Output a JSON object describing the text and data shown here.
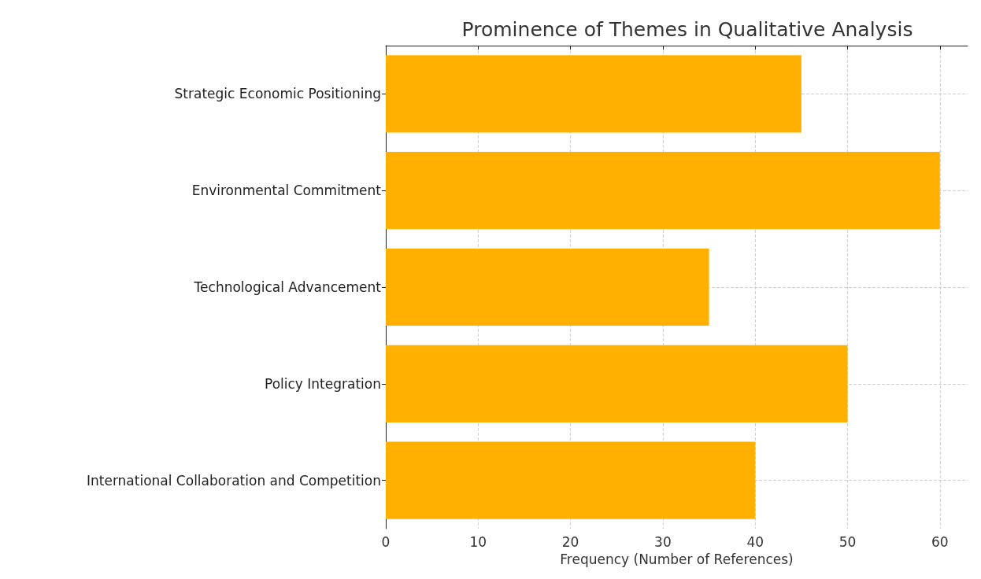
{
  "chart_data": {
    "type": "bar",
    "orientation": "horizontal",
    "title": "Prominence of Themes in Qualitative Analysis",
    "xlabel": "Frequency (Number of References)",
    "categories": [
      "Strategic Economic Positioning",
      "Environmental Commitment",
      "Technological Advancement",
      "Policy Integration",
      "International Collaboration and Competition"
    ],
    "values": [
      45,
      60,
      35,
      50,
      40
    ],
    "color": "#ffb000",
    "xlim": [
      0,
      63
    ],
    "xticks": [
      0,
      10,
      20,
      30,
      40,
      50,
      60
    ],
    "grid": true
  }
}
